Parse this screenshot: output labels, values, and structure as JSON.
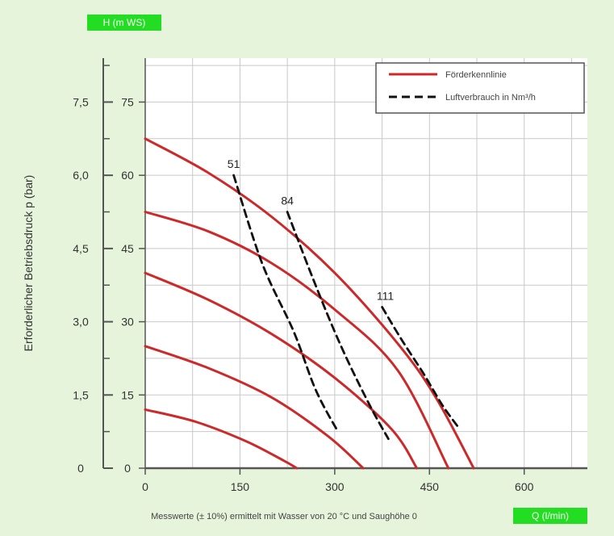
{
  "badges": {
    "top": "H (m WS)",
    "bottom": "Q (l/min)"
  },
  "chart_data": {
    "type": "line",
    "ylabel": "Erforderlicher Betriebsdruck p (bar)",
    "xlabel": "Messwerte (± 10%) ermittelt mit Wasser von 20 °C und Saughöhe 0",
    "xlim": [
      0,
      700
    ],
    "ylim": [
      0,
      8.4
    ],
    "x_ticks": [
      0,
      150,
      300,
      450,
      600
    ],
    "x_tick_labels": [
      "0",
      "150",
      "300",
      "450",
      "600"
    ],
    "y_ticks_bar": [
      0,
      1.5,
      3.0,
      4.5,
      6.0,
      7.5
    ],
    "y_tick_labels_bar": [
      "0",
      "1,5",
      "3,0",
      "4,5",
      "6,0",
      "7,5"
    ],
    "y_tick_labels_mws": [
      "0",
      "15",
      "30",
      "45",
      "60",
      "75"
    ],
    "grid": true,
    "legend_position": "top-right",
    "legend": [
      {
        "label": "Förderkennlinie",
        "style": "solid",
        "color": "#cc2a2a"
      },
      {
        "label": "Luftverbrauch in Nm³/h",
        "style": "dashed",
        "color": "#111111"
      }
    ],
    "series": [
      {
        "style": "solid",
        "color": "#cc2a2a",
        "x": [
          0,
          80,
          160,
          220,
          240
        ],
        "y": [
          1.2,
          0.95,
          0.55,
          0.15,
          0
        ]
      },
      {
        "style": "solid",
        "color": "#cc2a2a",
        "x": [
          0,
          100,
          200,
          290,
          345
        ],
        "y": [
          2.5,
          2.05,
          1.45,
          0.65,
          0
        ]
      },
      {
        "style": "solid",
        "color": "#cc2a2a",
        "x": [
          0,
          100,
          200,
          300,
          390,
          430
        ],
        "y": [
          4.0,
          3.45,
          2.75,
          1.85,
          0.8,
          0
        ]
      },
      {
        "style": "solid",
        "color": "#cc2a2a",
        "x": [
          0,
          100,
          200,
          300,
          400,
          480
        ],
        "y": [
          5.25,
          4.85,
          4.2,
          3.25,
          2.0,
          0
        ]
      },
      {
        "style": "solid",
        "color": "#cc2a2a",
        "x": [
          0,
          100,
          200,
          300,
          400,
          460,
          520
        ],
        "y": [
          6.75,
          6.05,
          5.15,
          4.0,
          2.55,
          1.45,
          0
        ]
      },
      {
        "style": "dashed",
        "color": "#111111",
        "name": "51",
        "x": [
          140,
          185,
          235,
          270,
          305
        ],
        "y": [
          6.0,
          4.2,
          2.8,
          1.6,
          0.75
        ]
      },
      {
        "style": "dashed",
        "color": "#111111",
        "name": "84",
        "x": [
          225,
          265,
          310,
          355,
          385
        ],
        "y": [
          5.25,
          3.9,
          2.5,
          1.3,
          0.6
        ]
      },
      {
        "style": "dashed",
        "color": "#111111",
        "name": "111",
        "x": [
          375,
          405,
          440,
          470,
          495
        ],
        "y": [
          3.3,
          2.65,
          1.95,
          1.3,
          0.85
        ]
      }
    ],
    "annotations": [
      {
        "text": "51",
        "x": 140,
        "y": 6.15
      },
      {
        "text": "84",
        "x": 225,
        "y": 5.4
      },
      {
        "text": "111",
        "x": 380,
        "y": 3.45
      }
    ]
  }
}
